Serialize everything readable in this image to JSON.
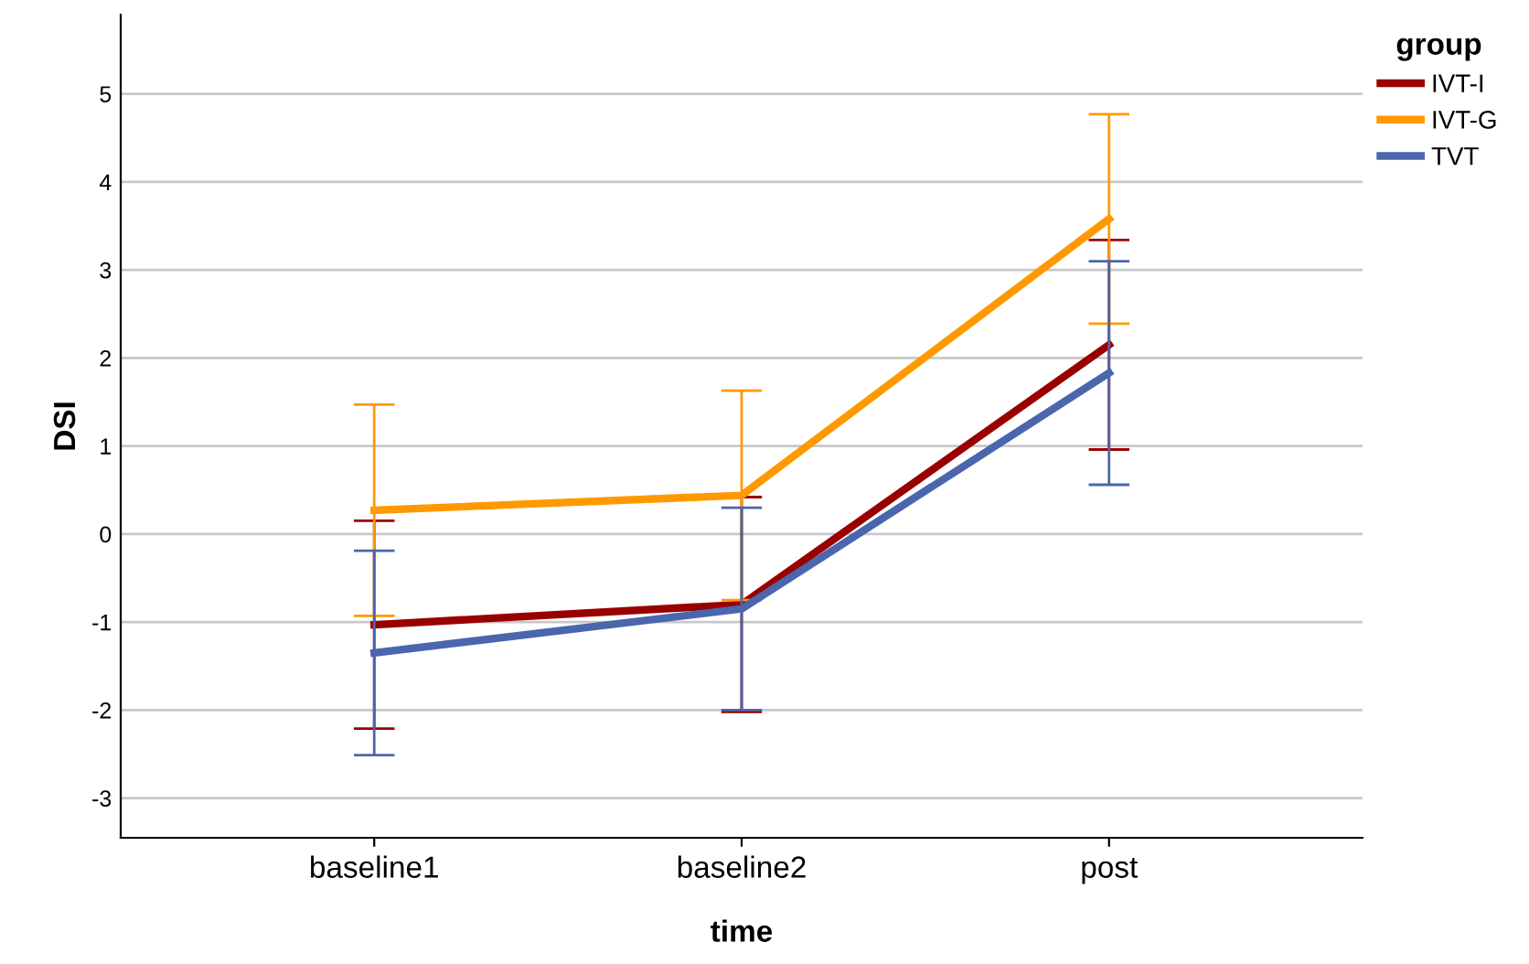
{
  "chart_data": {
    "type": "line",
    "xlabel": "time",
    "ylabel": "DSI",
    "legend_title": "group",
    "categories": [
      "baseline1",
      "baseline2",
      "post"
    ],
    "series": [
      {
        "name": "IVT-I",
        "color": "#990000",
        "values": [
          -1.03,
          -0.8,
          2.15
        ],
        "errors": [
          1.18,
          1.22,
          1.19
        ]
      },
      {
        "name": "IVT-G",
        "color": "#ff9900",
        "values": [
          0.27,
          0.44,
          3.58
        ],
        "errors": [
          1.2,
          1.19,
          1.19
        ]
      },
      {
        "name": "TVT",
        "color": "#4a66ac",
        "values": [
          -1.35,
          -0.85,
          1.83
        ],
        "errors": [
          1.16,
          1.15,
          1.27
        ]
      }
    ],
    "ylim": [
      -3.45,
      5.9
    ],
    "yticks": [
      -3,
      -2,
      -1,
      0,
      1,
      2,
      3,
      4,
      5
    ],
    "grid": "y",
    "legend": "top right",
    "marker": "none",
    "line_style": "solid"
  }
}
